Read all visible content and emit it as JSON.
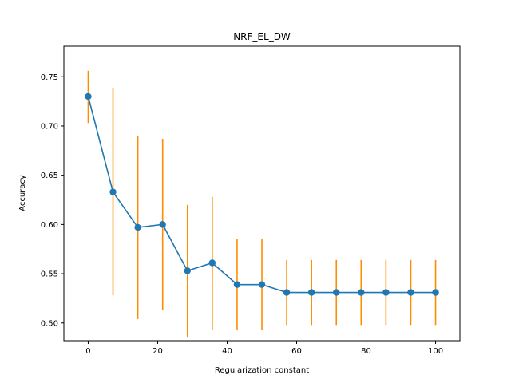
{
  "chart_data": {
    "type": "line",
    "title": "NRF_EL_DW",
    "xlabel": "Regularization constant",
    "ylabel": "Accuracy",
    "xlim": [
      -7,
      107
    ],
    "ylim": [
      0.482,
      0.781
    ],
    "xticks": [
      0,
      20,
      40,
      60,
      80,
      100
    ],
    "xtick_labels": [
      "0",
      "20",
      "40",
      "60",
      "80",
      "100"
    ],
    "yticks": [
      0.5,
      0.55,
      0.6,
      0.65,
      0.7,
      0.75
    ],
    "ytick_labels": [
      "0.50",
      "0.55",
      "0.60",
      "0.65",
      "0.70",
      "0.75"
    ],
    "grid": false,
    "series": [
      {
        "line_color": "#1f77b4",
        "errorbar_color": "#ff8c00",
        "marker": "circle",
        "x": [
          0,
          7.14,
          14.29,
          21.43,
          28.57,
          35.71,
          42.86,
          50,
          57.14,
          64.29,
          71.43,
          78.57,
          85.71,
          92.86,
          100
        ],
        "y": [
          0.73,
          0.633,
          0.597,
          0.6,
          0.553,
          0.561,
          0.539,
          0.539,
          0.531,
          0.531,
          0.531,
          0.531,
          0.531,
          0.531,
          0.531
        ],
        "err_low": [
          0.703,
          0.528,
          0.504,
          0.513,
          0.486,
          0.493,
          0.493,
          0.493,
          0.498,
          0.498,
          0.498,
          0.498,
          0.498,
          0.498,
          0.498
        ],
        "err_high": [
          0.756,
          0.739,
          0.69,
          0.687,
          0.62,
          0.628,
          0.585,
          0.585,
          0.564,
          0.564,
          0.564,
          0.564,
          0.564,
          0.564,
          0.564
        ]
      }
    ]
  }
}
